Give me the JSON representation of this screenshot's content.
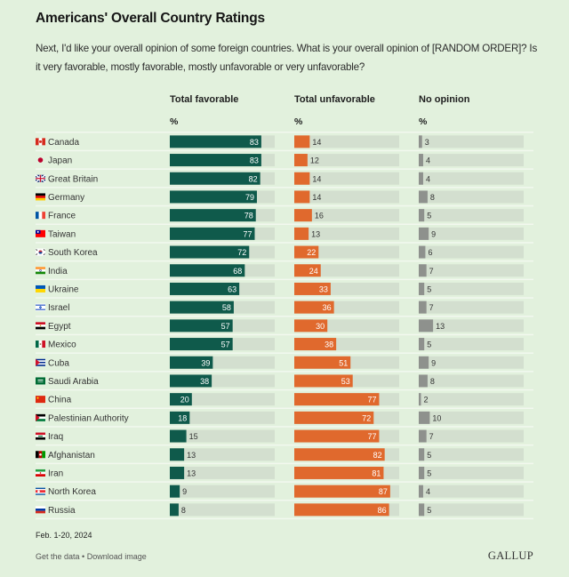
{
  "header": {
    "title": "Americans' Overall Country Ratings",
    "subtitle": "Next, I'd like your overall opinion of some foreign countries. What is your overall opinion of [RANDOM ORDER]? Is it very favorable, mostly favorable, mostly unfavorable or very unfavorable?"
  },
  "columns": [
    {
      "label": "Total favorable",
      "unit": "%"
    },
    {
      "label": "Total unfavorable",
      "unit": "%"
    },
    {
      "label": "No opinion",
      "unit": "%"
    }
  ],
  "colors": {
    "favorable": "#0f5a4b",
    "unfavorable": "#e0692d",
    "no_opinion": "#8e918d",
    "track": "#d3dfcf",
    "separator": "#f2f8ef",
    "label_inside": "#ffffff",
    "label_outside": "#333333"
  },
  "chart_data": {
    "type": "bar",
    "orientation": "horizontal",
    "title": "Americans' Overall Country Ratings",
    "unit": "%",
    "xlim": [
      0,
      100
    ],
    "categories": [
      "Canada",
      "Japan",
      "Great Britain",
      "Germany",
      "France",
      "Taiwan",
      "South Korea",
      "India",
      "Ukraine",
      "Israel",
      "Egypt",
      "Mexico",
      "Cuba",
      "Saudi Arabia",
      "China",
      "Palestinian Authority",
      "Iraq",
      "Afghanistan",
      "Iran",
      "North Korea",
      "Russia"
    ],
    "flags": [
      "canada-flag",
      "japan-flag",
      "great-britain-flag",
      "germany-flag",
      "france-flag",
      "taiwan-flag",
      "south-korea-flag",
      "india-flag",
      "ukraine-flag",
      "israel-flag",
      "egypt-flag",
      "mexico-flag",
      "cuba-flag",
      "saudi-arabia-flag",
      "china-flag",
      "palestinian-authority-flag",
      "iraq-flag",
      "afghanistan-flag",
      "iran-flag",
      "north-korea-flag",
      "russia-flag"
    ],
    "series": [
      {
        "name": "Total favorable",
        "values": [
          83,
          83,
          82,
          79,
          78,
          77,
          72,
          68,
          63,
          58,
          57,
          57,
          39,
          38,
          20,
          18,
          15,
          13,
          13,
          9,
          8
        ]
      },
      {
        "name": "Total unfavorable",
        "values": [
          14,
          12,
          14,
          14,
          16,
          13,
          22,
          24,
          33,
          36,
          30,
          38,
          51,
          53,
          77,
          72,
          77,
          82,
          81,
          87,
          86
        ]
      },
      {
        "name": "No opinion",
        "values": [
          3,
          4,
          4,
          8,
          5,
          9,
          6,
          7,
          5,
          7,
          13,
          5,
          9,
          8,
          2,
          10,
          7,
          5,
          5,
          4,
          5
        ]
      }
    ]
  },
  "footer": {
    "date": "Feb. 1-20, 2024",
    "get_data": "Get the data",
    "bullet": " • ",
    "download": "Download image",
    "logo": "GALLUP"
  }
}
